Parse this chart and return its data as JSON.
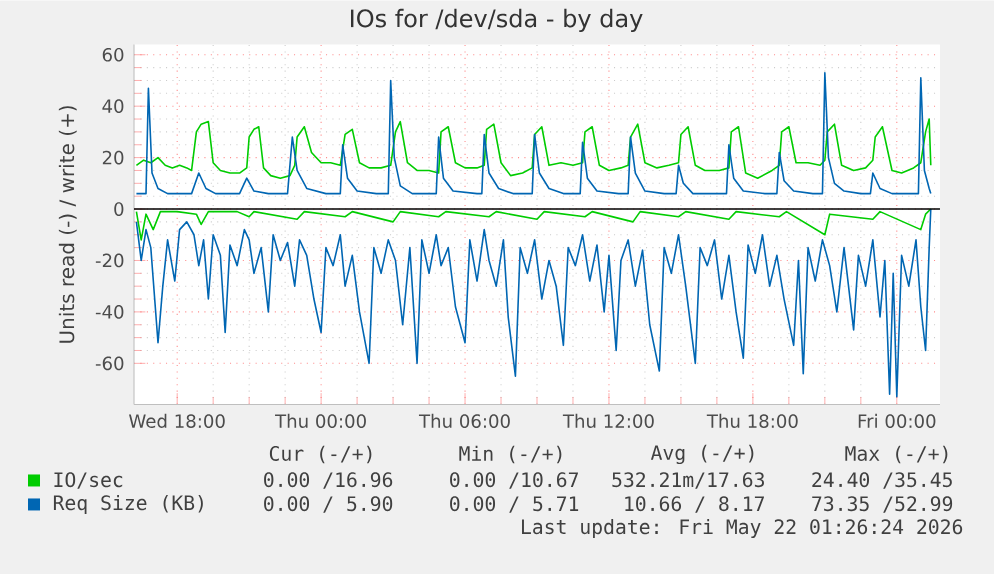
{
  "chart_data": {
    "type": "line",
    "title": "IOs for /dev/sda - by day",
    "ylabel": "Units read (-) / write (+)",
    "xlim": [
      "2026-05-20T16:12",
      "2026-05-22T01:48"
    ],
    "ylim": [
      -76,
      64
    ],
    "xticks": [
      {
        "value": "2026-05-20T18:00",
        "label": "Wed 18:00"
      },
      {
        "value": "2026-05-21T00:00",
        "label": "Thu 00:00"
      },
      {
        "value": "2026-05-21T06:00",
        "label": "Thu 06:00"
      },
      {
        "value": "2026-05-21T12:00",
        "label": "Thu 12:00"
      },
      {
        "value": "2026-05-21T18:00",
        "label": "Thu 18:00"
      },
      {
        "value": "2026-05-22T00:00",
        "label": "Fri 00:00"
      }
    ],
    "yticks": [
      -60,
      -40,
      -20,
      0,
      20,
      40,
      60
    ],
    "grid": true,
    "legend": "bottom",
    "ref_lines": [
      {
        "axis": "y",
        "value": 0,
        "color": "#000000"
      }
    ],
    "annotations": [
      "Cur (-/+)",
      "Min (-/+)",
      "Avg (-/+)",
      "Max (-/+)",
      "0.00 /16.96",
      "0.00 /10.67",
      "532.21m/17.63",
      "24.40 /35.45",
      "0.00 / 5.90",
      "0.00 / 5.71",
      "10.66 / 8.17",
      "73.35 /52.99",
      "Last update: Fri May 22 01:26:24 2026"
    ],
    "series": [
      {
        "name": "IO/sec",
        "color": "#00cc00",
        "x": [
          "2026-05-20T16:18",
          "2026-05-20T16:36",
          "2026-05-20T16:54",
          "2026-05-20T17:12",
          "2026-05-20T17:30",
          "2026-05-20T17:48",
          "2026-05-20T18:06",
          "2026-05-20T18:24",
          "2026-05-20T18:36",
          "2026-05-20T18:48",
          "2026-05-20T19:00",
          "2026-05-20T19:18",
          "2026-05-20T19:30",
          "2026-05-20T19:48",
          "2026-05-20T20:12",
          "2026-05-20T20:36",
          "2026-05-20T20:54",
          "2026-05-20T21:00",
          "2026-05-20T21:12",
          "2026-05-20T21:24",
          "2026-05-20T21:36",
          "2026-05-20T21:54",
          "2026-05-20T22:18",
          "2026-05-20T22:42",
          "2026-05-20T22:54",
          "2026-05-20T23:00",
          "2026-05-20T23:18",
          "2026-05-20T23:36",
          "2026-05-21T00:00",
          "2026-05-21T00:24",
          "2026-05-21T00:48",
          "2026-05-21T01:00",
          "2026-05-21T01:18",
          "2026-05-21T01:36",
          "2026-05-21T02:00",
          "2026-05-21T02:30",
          "2026-05-21T02:54",
          "2026-05-21T03:06",
          "2026-05-21T03:18",
          "2026-05-21T03:36",
          "2026-05-21T04:00",
          "2026-05-21T04:30",
          "2026-05-21T04:54",
          "2026-05-21T05:00",
          "2026-05-21T05:18",
          "2026-05-21T05:36",
          "2026-05-21T06:00",
          "2026-05-21T06:30",
          "2026-05-21T06:48",
          "2026-05-21T06:54",
          "2026-05-21T07:12",
          "2026-05-21T07:30",
          "2026-05-21T07:54",
          "2026-05-21T08:24",
          "2026-05-21T08:48",
          "2026-05-21T08:54",
          "2026-05-21T09:12",
          "2026-05-21T09:30",
          "2026-05-21T10:00",
          "2026-05-21T10:30",
          "2026-05-21T10:54",
          "2026-05-21T11:00",
          "2026-05-21T11:18",
          "2026-05-21T11:36",
          "2026-05-21T12:00",
          "2026-05-21T12:30",
          "2026-05-21T12:48",
          "2026-05-21T12:54",
          "2026-05-21T13:12",
          "2026-05-21T13:30",
          "2026-05-21T14:00",
          "2026-05-21T14:30",
          "2026-05-21T14:54",
          "2026-05-21T15:00",
          "2026-05-21T15:18",
          "2026-05-21T15:36",
          "2026-05-21T16:00",
          "2026-05-21T16:36",
          "2026-05-21T17:00",
          "2026-05-21T17:06",
          "2026-05-21T17:24",
          "2026-05-21T17:42",
          "2026-05-21T18:12",
          "2026-05-21T18:48",
          "2026-05-21T19:06",
          "2026-05-21T19:12",
          "2026-05-21T19:30",
          "2026-05-21T19:48",
          "2026-05-21T20:18",
          "2026-05-21T20:48",
          "2026-05-21T21:00",
          "2026-05-21T21:06",
          "2026-05-21T21:24",
          "2026-05-21T21:42",
          "2026-05-21T22:12",
          "2026-05-21T22:42",
          "2026-05-21T23:00",
          "2026-05-21T23:06",
          "2026-05-21T23:24",
          "2026-05-21T23:48",
          "2026-05-22T00:12",
          "2026-05-22T00:42",
          "2026-05-22T01:00",
          "2026-05-22T01:12",
          "2026-05-22T01:21",
          "2026-05-22T01:25"
        ],
        "values": [
          17,
          19,
          18,
          20,
          17,
          16,
          17,
          16,
          15,
          30,
          33,
          34,
          18,
          15,
          14,
          14,
          16,
          28,
          31,
          32,
          16,
          13,
          12,
          13,
          17,
          28,
          32,
          22,
          18,
          18,
          17,
          29,
          31,
          18,
          16,
          16,
          17,
          30,
          34,
          18,
          15,
          15,
          14,
          30,
          32,
          18,
          16,
          16,
          17,
          31,
          33,
          18,
          13,
          14,
          16,
          29,
          32,
          17,
          18,
          17,
          18,
          30,
          32,
          17,
          15,
          16,
          17,
          28,
          33,
          18,
          16,
          17,
          18,
          29,
          32,
          17,
          15,
          15,
          16,
          30,
          32,
          14,
          12,
          15,
          17,
          30,
          32,
          18,
          18,
          17,
          19,
          30,
          33,
          17,
          15,
          16,
          19,
          28,
          32,
          15,
          14,
          16,
          18,
          30,
          35,
          17
        ]
      },
      {
        "color": "#00cc00",
        "x": [
          "2026-05-20T16:18",
          "2026-05-20T16:30",
          "2026-05-20T16:42",
          "2026-05-20T17:00",
          "2026-05-20T17:18",
          "2026-05-20T18:00",
          "2026-05-20T18:48",
          "2026-05-20T19:00",
          "2026-05-20T19:18",
          "2026-05-20T20:30",
          "2026-05-20T21:00",
          "2026-05-20T21:12",
          "2026-05-20T23:00",
          "2026-05-20T23:18",
          "2026-05-21T01:00",
          "2026-05-21T01:18",
          "2026-05-21T03:00",
          "2026-05-21T03:18",
          "2026-05-21T04:54",
          "2026-05-21T05:12",
          "2026-05-21T07:00",
          "2026-05-21T07:18",
          "2026-05-21T09:00",
          "2026-05-21T09:18",
          "2026-05-21T11:00",
          "2026-05-21T11:18",
          "2026-05-21T13:00",
          "2026-05-21T13:18",
          "2026-05-21T14:54",
          "2026-05-21T15:12",
          "2026-05-21T17:00",
          "2026-05-21T17:18",
          "2026-05-21T19:06",
          "2026-05-21T19:24",
          "2026-05-21T21:00",
          "2026-05-21T21:12",
          "2026-05-21T23:00",
          "2026-05-21T23:18",
          "2026-05-22T01:00",
          "2026-05-22T01:12",
          "2026-05-22T01:25"
        ],
        "values": [
          -1,
          -12,
          -2,
          -8,
          -1,
          -1,
          -2,
          -6,
          -1,
          -1,
          -3,
          -1,
          -4,
          -1,
          -3,
          -1,
          -5,
          -1,
          -3,
          -1,
          -3,
          -1,
          -4,
          -1,
          -3,
          -1,
          -5,
          -1,
          -3,
          -1,
          -4,
          -1,
          -3,
          -1,
          -10,
          -2,
          -4,
          -1,
          -8,
          -2,
          0
        ]
      },
      {
        "name": "Req Size (KB)",
        "color": "#0066b3",
        "x": [
          "2026-05-20T16:18",
          "2026-05-20T16:42",
          "2026-05-20T16:48",
          "2026-05-20T16:57",
          "2026-05-20T17:12",
          "2026-05-20T17:36",
          "2026-05-20T18:36",
          "2026-05-20T18:54",
          "2026-05-20T19:12",
          "2026-05-20T19:36",
          "2026-05-20T20:36",
          "2026-05-20T20:54",
          "2026-05-20T21:12",
          "2026-05-20T21:48",
          "2026-05-20T22:36",
          "2026-05-20T22:48",
          "2026-05-20T23:00",
          "2026-05-20T23:24",
          "2026-05-21T00:12",
          "2026-05-21T00:48",
          "2026-05-21T00:54",
          "2026-05-21T01:06",
          "2026-05-21T01:30",
          "2026-05-21T02:18",
          "2026-05-21T02:48",
          "2026-05-21T02:54",
          "2026-05-21T03:03",
          "2026-05-21T03:18",
          "2026-05-21T03:48",
          "2026-05-21T04:48",
          "2026-05-21T04:54",
          "2026-05-21T05:06",
          "2026-05-21T05:30",
          "2026-05-21T06:30",
          "2026-05-21T06:42",
          "2026-05-21T06:48",
          "2026-05-21T07:00",
          "2026-05-21T07:24",
          "2026-05-21T08:00",
          "2026-05-21T08:48",
          "2026-05-21T08:54",
          "2026-05-21T09:06",
          "2026-05-21T09:30",
          "2026-05-21T10:06",
          "2026-05-21T10:48",
          "2026-05-21T10:54",
          "2026-05-21T11:06",
          "2026-05-21T11:30",
          "2026-05-21T12:24",
          "2026-05-21T12:48",
          "2026-05-21T12:54",
          "2026-05-21T13:06",
          "2026-05-21T13:30",
          "2026-05-21T14:18",
          "2026-05-21T14:48",
          "2026-05-21T14:54",
          "2026-05-21T15:06",
          "2026-05-21T15:30",
          "2026-05-21T16:12",
          "2026-05-21T16:54",
          "2026-05-21T17:00",
          "2026-05-21T17:12",
          "2026-05-21T17:36",
          "2026-05-21T18:30",
          "2026-05-21T19:00",
          "2026-05-21T19:06",
          "2026-05-21T19:18",
          "2026-05-21T19:42",
          "2026-05-21T20:30",
          "2026-05-21T20:54",
          "2026-05-21T21:00",
          "2026-05-21T21:09",
          "2026-05-21T21:24",
          "2026-05-21T21:48",
          "2026-05-21T22:30",
          "2026-05-21T22:54",
          "2026-05-21T23:00",
          "2026-05-21T23:18",
          "2026-05-21T23:48",
          "2026-05-22T00:30",
          "2026-05-22T00:54",
          "2026-05-22T01:00",
          "2026-05-22T01:09",
          "2026-05-22T01:21",
          "2026-05-22T01:25"
        ],
        "values": [
          6,
          6,
          47,
          14,
          8,
          6,
          6,
          14,
          8,
          6,
          6,
          12,
          7,
          6,
          6,
          28,
          15,
          8,
          6,
          6,
          25,
          12,
          7,
          6,
          6,
          50,
          20,
          9,
          6,
          6,
          28,
          12,
          7,
          6,
          6,
          29,
          14,
          8,
          6,
          6,
          29,
          14,
          8,
          6,
          6,
          26,
          12,
          7,
          6,
          6,
          28,
          14,
          7,
          6,
          6,
          17,
          10,
          6,
          6,
          6,
          25,
          12,
          7,
          6,
          6,
          22,
          11,
          7,
          6,
          6,
          53,
          20,
          10,
          7,
          6,
          6,
          14,
          8,
          6,
          6,
          6,
          51,
          15,
          8,
          6
        ]
      },
      {
        "color": "#0066b3",
        "x": [
          "2026-05-20T16:18",
          "2026-05-20T16:30",
          "2026-05-20T16:42",
          "2026-05-20T16:54",
          "2026-05-20T17:12",
          "2026-05-20T17:24",
          "2026-05-20T17:36",
          "2026-05-20T17:54",
          "2026-05-20T18:06",
          "2026-05-20T18:24",
          "2026-05-20T18:42",
          "2026-05-20T18:54",
          "2026-05-20T19:06",
          "2026-05-20T19:18",
          "2026-05-20T19:30",
          "2026-05-20T19:48",
          "2026-05-20T20:00",
          "2026-05-20T20:12",
          "2026-05-20T20:30",
          "2026-05-20T20:48",
          "2026-05-20T21:00",
          "2026-05-20T21:12",
          "2026-05-20T21:30",
          "2026-05-20T21:48",
          "2026-05-20T22:00",
          "2026-05-20T22:18",
          "2026-05-20T22:36",
          "2026-05-20T22:54",
          "2026-05-20T23:06",
          "2026-05-20T23:24",
          "2026-05-20T23:42",
          "2026-05-21T00:00",
          "2026-05-21T00:12",
          "2026-05-21T00:30",
          "2026-05-21T00:48",
          "2026-05-21T01:00",
          "2026-05-21T01:18",
          "2026-05-21T01:36",
          "2026-05-21T02:00",
          "2026-05-21T02:12",
          "2026-05-21T02:30",
          "2026-05-21T02:48",
          "2026-05-21T03:06",
          "2026-05-21T03:24",
          "2026-05-21T03:42",
          "2026-05-21T04:00",
          "2026-05-21T04:12",
          "2026-05-21T04:30",
          "2026-05-21T04:48",
          "2026-05-21T05:00",
          "2026-05-21T05:18",
          "2026-05-21T05:36",
          "2026-05-21T06:00",
          "2026-05-21T06:12",
          "2026-05-21T06:30",
          "2026-05-21T06:48",
          "2026-05-21T07:00",
          "2026-05-21T07:18",
          "2026-05-21T07:36",
          "2026-05-21T07:48",
          "2026-05-21T08:06",
          "2026-05-21T08:18",
          "2026-05-21T08:36",
          "2026-05-21T08:54",
          "2026-05-21T09:12",
          "2026-05-21T09:30",
          "2026-05-21T09:48",
          "2026-05-21T10:06",
          "2026-05-21T10:18",
          "2026-05-21T10:36",
          "2026-05-21T10:54",
          "2026-05-21T11:12",
          "2026-05-21T11:30",
          "2026-05-21T11:48",
          "2026-05-21T12:00",
          "2026-05-21T12:18",
          "2026-05-21T12:30",
          "2026-05-21T12:48",
          "2026-05-21T13:06",
          "2026-05-21T13:24",
          "2026-05-21T13:42",
          "2026-05-21T14:06",
          "2026-05-21T14:18",
          "2026-05-21T14:36",
          "2026-05-21T14:54",
          "2026-05-21T15:12",
          "2026-05-21T15:36",
          "2026-05-21T15:48",
          "2026-05-21T16:06",
          "2026-05-21T16:24",
          "2026-05-21T16:42",
          "2026-05-21T17:00",
          "2026-05-21T17:18",
          "2026-05-21T17:36",
          "2026-05-21T17:48",
          "2026-05-21T18:06",
          "2026-05-21T18:24",
          "2026-05-21T18:42",
          "2026-05-21T19:00",
          "2026-05-21T19:18",
          "2026-05-21T19:42",
          "2026-05-21T19:54",
          "2026-05-21T20:06",
          "2026-05-21T20:18",
          "2026-05-21T20:36",
          "2026-05-21T20:54",
          "2026-05-21T21:12",
          "2026-05-21T21:30",
          "2026-05-21T21:48",
          "2026-05-21T22:12",
          "2026-05-21T22:24",
          "2026-05-21T22:42",
          "2026-05-21T23:00",
          "2026-05-21T23:18",
          "2026-05-21T23:30",
          "2026-05-21T23:42",
          "2026-05-21T23:51",
          "2026-05-22T00:00",
          "2026-05-22T00:12",
          "2026-05-22T00:30",
          "2026-05-22T00:48",
          "2026-05-22T01:00",
          "2026-05-22T01:12",
          "2026-05-22T01:21",
          "2026-05-22T01:25"
        ],
        "values": [
          -5,
          -20,
          -8,
          -15,
          -52,
          -30,
          -12,
          -28,
          -8,
          -5,
          -10,
          -22,
          -12,
          -35,
          -10,
          -18,
          -48,
          -14,
          -22,
          -8,
          -12,
          -25,
          -15,
          -40,
          -10,
          -20,
          -13,
          -30,
          -12,
          -18,
          -35,
          -48,
          -15,
          -22,
          -10,
          -30,
          -18,
          -40,
          -60,
          -15,
          -25,
          -12,
          -20,
          -45,
          -15,
          -60,
          -12,
          -25,
          -10,
          -22,
          -15,
          -38,
          -52,
          -12,
          -28,
          -8,
          -20,
          -30,
          -12,
          -42,
          -65,
          -15,
          -25,
          -12,
          -35,
          -20,
          -30,
          -53,
          -15,
          -22,
          -10,
          -28,
          -14,
          -40,
          -18,
          -55,
          -20,
          -12,
          -30,
          -16,
          -45,
          -63,
          -15,
          -25,
          -10,
          -30,
          -60,
          -15,
          -22,
          -12,
          -35,
          -18,
          -40,
          -58,
          -14,
          -25,
          -10,
          -30,
          -18,
          -35,
          -53,
          -20,
          -64,
          -15,
          -28,
          -12,
          -22,
          -40,
          -15,
          -47,
          -18,
          -30,
          -12,
          -42,
          -20,
          -72,
          -25,
          -73,
          -18,
          -30,
          -12,
          -38,
          -55,
          -15,
          0
        ]
      }
    ]
  }
}
